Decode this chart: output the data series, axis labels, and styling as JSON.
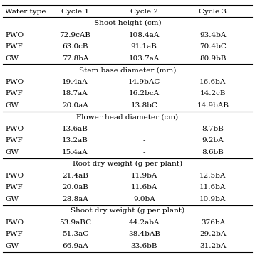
{
  "col_headers": [
    "Water type",
    "Cycle 1",
    "Cycle 2",
    "Cycle 3"
  ],
  "sections": [
    {
      "title": "Shoot height (cm)",
      "rows": [
        [
          "PWO",
          "72.9cAB",
          "108.4aA",
          "93.4bA"
        ],
        [
          "PWF",
          "63.0cB",
          "91.1aB",
          "70.4bC"
        ],
        [
          "GW",
          "77.8bA",
          "103.7aA",
          "80.9bB"
        ]
      ]
    },
    {
      "title": "Stem base diameter (mm)",
      "rows": [
        [
          "PWO",
          "19.4aA",
          "14.9bAC",
          "16.6bA"
        ],
        [
          "PWF",
          "18.7aA",
          "16.2bcA",
          "14.2cB"
        ],
        [
          "GW",
          "20.0aA",
          "13.8bC",
          "14.9bAB"
        ]
      ]
    },
    {
      "title": "Flower head diameter (cm)",
      "rows": [
        [
          "PWO",
          "13.6aB",
          "-",
          "8.7bB"
        ],
        [
          "PWF",
          "13.2aB",
          "-",
          "9.2bA"
        ],
        [
          "GW",
          "15.4aA",
          "-",
          "8.6bB"
        ]
      ]
    },
    {
      "title": "Root dry weight (g per plant)",
      "rows": [
        [
          "PWO",
          "21.4aB",
          "11.9bA",
          "12.5bA"
        ],
        [
          "PWF",
          "20.0aB",
          "11.6bA",
          "11.6bA"
        ],
        [
          "GW",
          "28.8aA",
          "9.0bA",
          "10.9bA"
        ]
      ]
    },
    {
      "title": "Shoot dry weight (g per plant)",
      "rows": [
        [
          "PWO",
          "53.9aBC",
          "44.2abA",
          "376bA"
        ],
        [
          "PWF",
          "51.3aC",
          "38.4bAB",
          "29.2bA"
        ],
        [
          "GW",
          "66.9aA",
          "33.6bB",
          "31.2bA"
        ]
      ]
    }
  ],
  "bg_color": "#ffffff",
  "header_fontsize": 7.5,
  "cell_fontsize": 7.5,
  "section_title_fontsize": 7.5,
  "figsize": [
    3.58,
    3.59
  ],
  "dpi": 100
}
